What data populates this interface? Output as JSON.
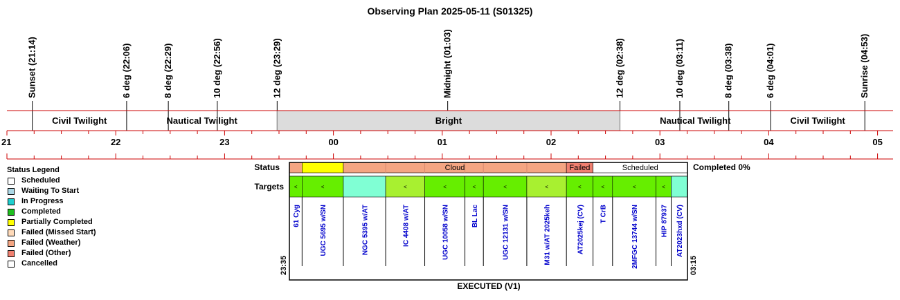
{
  "title": "Observing Plan 2025-05-11 (S01325)",
  "colors": {
    "line": "#cc0000",
    "bright_band": "#dcdcdc",
    "target_link": "#0000cc",
    "scheduled": "#ffffff",
    "waiting": "#add8e6",
    "in_progress": "#1fcfcf",
    "completed": "#1fbf1f",
    "partially_completed": "#ffff00",
    "failed_missed": "#ffdab9",
    "failed_weather": "#f4a582",
    "failed_other": "#f08070",
    "cancelled": "#ffffff",
    "target_green": "#66ee00",
    "target_lime": "#a8f030",
    "target_aqua": "#80ffd4"
  },
  "timeline": {
    "start_hour": 21,
    "end_hour": 29.2,
    "hour_labels": [
      "21",
      "22",
      "23",
      "00",
      "01",
      "02",
      "03",
      "04",
      "05"
    ],
    "events": [
      {
        "label": "Sunset (21:14)",
        "t": 21.233
      },
      {
        "label": "6 deg (22:06)",
        "t": 22.1
      },
      {
        "label": "8 deg (22:29)",
        "t": 22.483
      },
      {
        "label": "10 deg (22:56)",
        "t": 22.933
      },
      {
        "label": "12 deg (23:29)",
        "t": 23.483
      },
      {
        "label": "Midnight (01:03)",
        "t": 25.05
      },
      {
        "label": "12 deg (02:38)",
        "t": 26.633
      },
      {
        "label": "10 deg (03:11)",
        "t": 27.183
      },
      {
        "label": "8 deg (03:38)",
        "t": 27.633
      },
      {
        "label": "6 deg (04:01)",
        "t": 28.017
      },
      {
        "label": "Sunrise (04:53)",
        "t": 28.883
      }
    ],
    "bands": [
      {
        "label": "Civil Twilight",
        "from": 21.233,
        "to": 22.1,
        "shaded": false
      },
      {
        "label": "Nautical Twilight",
        "from": 22.1,
        "to": 23.483,
        "shaded": false
      },
      {
        "label": "Bright",
        "from": 23.483,
        "to": 26.633,
        "shaded": true
      },
      {
        "label": "Nautical Twilight",
        "from": 26.633,
        "to": 28.017,
        "shaded": false
      },
      {
        "label": "Civil Twilight",
        "from": 28.017,
        "to": 28.883,
        "shaded": false
      }
    ]
  },
  "plan": {
    "start_label": "23:35",
    "end_label": "03:15",
    "start_t": 23.583,
    "end_t": 27.25,
    "status_label": "Status",
    "targets_label": "Targets",
    "completed_text": "Completed 0%",
    "executed_text": "EXECUTED (V1)",
    "status_segments": [
      {
        "from": 23.583,
        "to": 23.7,
        "label": "",
        "color": "#f4a582"
      },
      {
        "from": 23.7,
        "to": 24.08,
        "label": "",
        "color": "#ffff00"
      },
      {
        "from": 24.08,
        "to": 26.135,
        "label": "Cloud",
        "color": "#f4a582"
      },
      {
        "from": 26.135,
        "to": 26.38,
        "label": "Failed",
        "color": "#f08070"
      },
      {
        "from": 26.38,
        "to": 27.25,
        "label": "Scheduled",
        "color": "#ffffff"
      }
    ],
    "targets": [
      {
        "name": "61 Cyg",
        "from": 23.583,
        "to": 23.7,
        "color": "#66ee00",
        "mark": "<"
      },
      {
        "name": "UGC 5695 w/SN",
        "from": 23.7,
        "to": 24.08,
        "color": "#66ee00",
        "mark": "<"
      },
      {
        "name": "NGC 5395 w/AT",
        "from": 24.08,
        "to": 24.47,
        "color": "#80ffd4",
        "mark": ""
      },
      {
        "name": "IC 4408 w/AT",
        "from": 24.47,
        "to": 24.83,
        "color": "#a8f030",
        "mark": "<"
      },
      {
        "name": "UGC 10058 w/SN",
        "from": 24.83,
        "to": 25.2,
        "color": "#66ee00",
        "mark": "<"
      },
      {
        "name": "BL Lac",
        "from": 25.2,
        "to": 25.37,
        "color": "#66ee00",
        "mark": "<"
      },
      {
        "name": "UGC 12131 w/SN",
        "from": 25.37,
        "to": 25.77,
        "color": "#66ee00",
        "mark": "<"
      },
      {
        "name": "M31 w/AT 2025keh",
        "from": 25.77,
        "to": 26.135,
        "color": "#a8f030",
        "mark": "<"
      },
      {
        "name": "AT2025kej (CV)",
        "from": 26.135,
        "to": 26.38,
        "color": "#66ee00",
        "mark": "<"
      },
      {
        "name": "T CrB",
        "from": 26.38,
        "to": 26.56,
        "color": "#66ee00",
        "mark": "<"
      },
      {
        "name": "2MFGC 13744 w/SN",
        "from": 26.56,
        "to": 26.96,
        "color": "#66ee00",
        "mark": "<"
      },
      {
        "name": "HIP 87937",
        "from": 26.96,
        "to": 27.1,
        "color": "#66ee00",
        "mark": "<"
      },
      {
        "name": "AT2023hxd (CV)",
        "from": 27.1,
        "to": 27.25,
        "color": "#80ffd4",
        "mark": ""
      }
    ]
  },
  "legend": {
    "title": "Status Legend",
    "items": [
      {
        "label": "Scheduled",
        "color": "#ffffff"
      },
      {
        "label": "Waiting To Start",
        "color": "#add8e6"
      },
      {
        "label": "In Progress",
        "color": "#1fcfcf"
      },
      {
        "label": "Completed",
        "color": "#1fbf1f"
      },
      {
        "label": "Partially Completed",
        "color": "#ffff00"
      },
      {
        "label": "Failed (Missed Start)",
        "color": "#ffdab9"
      },
      {
        "label": "Failed (Weather)",
        "color": "#f4a582"
      },
      {
        "label": "Failed (Other)",
        "color": "#f08070"
      },
      {
        "label": "Cancelled",
        "color": "#ffffff"
      }
    ]
  }
}
